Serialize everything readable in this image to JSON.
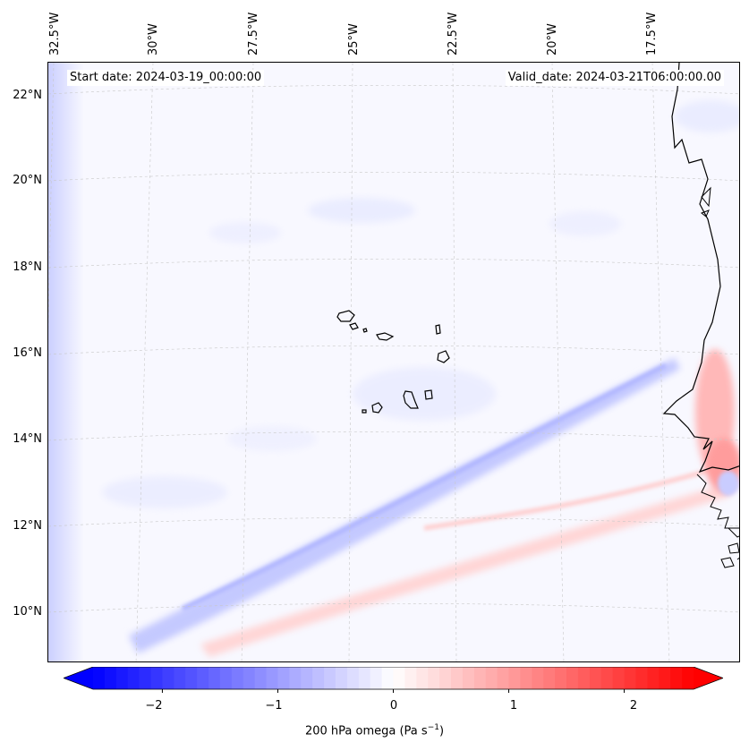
{
  "map": {
    "start_date": "Start date: 2024-03-19_00:00:00",
    "valid_date": "Valid_date: 2024-03-21T06:00:00.00",
    "longitude_labels": [
      "32.5°W",
      "30°W",
      "27.5°W",
      "25°W",
      "22.5°W",
      "20°W",
      "17.5°W"
    ],
    "latitude_labels": [
      "22°N",
      "20°N",
      "18°N",
      "16°N",
      "14°N",
      "12°N",
      "10°N"
    ],
    "lon_range": [
      -33.0,
      -15.3
    ],
    "lat_range": [
      8.8,
      22.8
    ],
    "variable": "200 hPa omega",
    "units": "Pa s",
    "units_superscript": "−1"
  },
  "colorbar": {
    "min": -2.6,
    "max": 2.6,
    "ticks": [
      "−2",
      "−1",
      "0",
      "1",
      "2"
    ],
    "tick_values": [
      -2,
      -1,
      0,
      1,
      2
    ],
    "negative_color": "#0000ff",
    "neutral_color": "#ffffff",
    "positive_color": "#ff0000",
    "extend": "both"
  }
}
